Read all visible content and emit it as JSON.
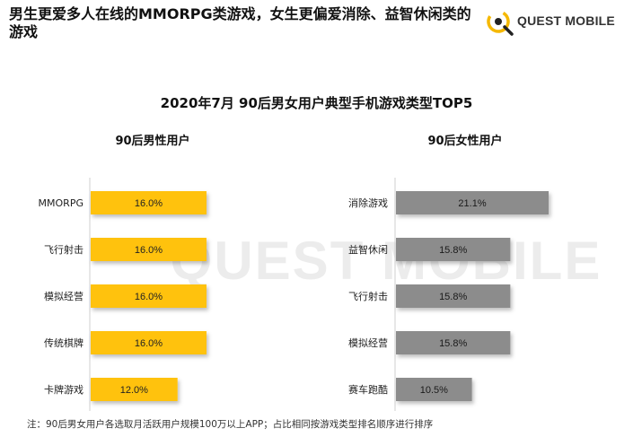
{
  "header": {
    "headline": "男生更爱多人在线的MMORPG类游戏，女生更偏爱消除、益智休闲类的游戏",
    "brand_name": "QUEST MOBILE",
    "watermark": "QUEST MOBILE"
  },
  "colors": {
    "male_bar": "#FFC20E",
    "female_bar": "#8C8C8C",
    "brand_accent": "#F5B800"
  },
  "chart_data": [
    {
      "type": "bar",
      "orientation": "horizontal",
      "title": "2020年7月 90后男女用户典型手机游戏类型TOP5",
      "panel_title": "90后男性用户",
      "categories": [
        "MMORPG",
        "飞行射击",
        "模拟经营",
        "传统棋牌",
        "卡牌游戏"
      ],
      "values": [
        16.0,
        16.0,
        16.0,
        16.0,
        12.0
      ],
      "value_labels": [
        "16.0%",
        "16.0%",
        "16.0%",
        "16.0%",
        "12.0%"
      ],
      "unit": "%",
      "xlim": [
        0,
        25
      ]
    },
    {
      "type": "bar",
      "orientation": "horizontal",
      "panel_title": "90后女性用户",
      "categories": [
        "消除游戏",
        "益智休闲",
        "飞行射击",
        "模拟经营",
        "赛车跑酷"
      ],
      "values": [
        21.1,
        15.8,
        15.8,
        15.8,
        10.5
      ],
      "value_labels": [
        "21.1%",
        "15.8%",
        "15.8%",
        "15.8%",
        "10.5%"
      ],
      "unit": "%",
      "xlim": [
        0,
        25
      ]
    }
  ],
  "footnote": "注：90后男女用户各选取月活跃用户规模100万以上APP；占比相同按游戏类型排名顺序进行排序"
}
